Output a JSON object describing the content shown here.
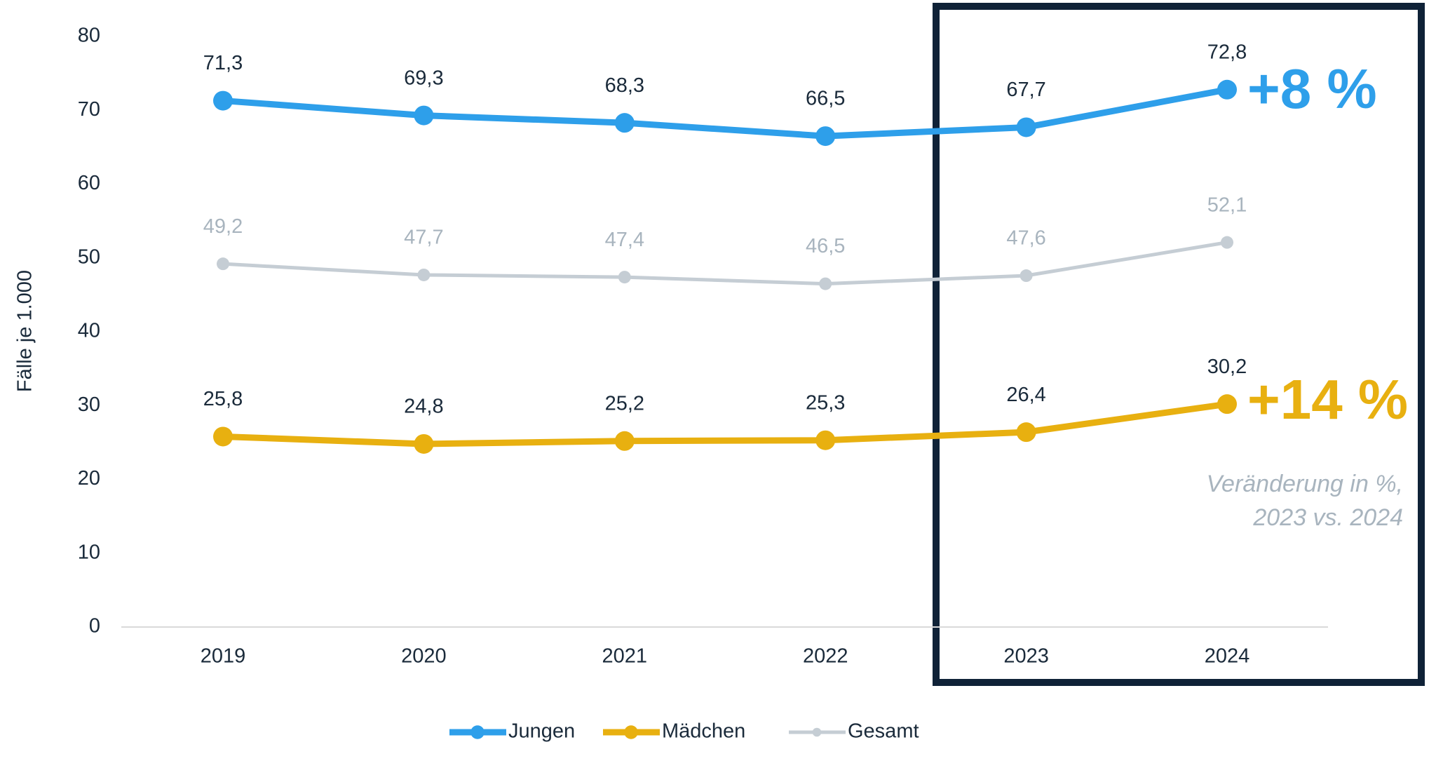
{
  "chart_data": {
    "type": "line",
    "y_label": "Fälle je 1.000",
    "categories": [
      "2019",
      "2020",
      "2021",
      "2022",
      "2023",
      "2024"
    ],
    "series": [
      {
        "name": "Jungen",
        "color": "#2E9FEA",
        "values": [
          71.3,
          69.3,
          68.3,
          66.5,
          67.7,
          72.8
        ],
        "value_labels": [
          "71,3",
          "69,3",
          "68,3",
          "66,5",
          "67,7",
          "72,8"
        ]
      },
      {
        "name": "Mädchen",
        "color": "#E8B010",
        "values": [
          25.8,
          24.8,
          25.2,
          25.3,
          26.4,
          30.2
        ],
        "value_labels": [
          "25,8",
          "24,8",
          "25,2",
          "25,3",
          "26,4",
          "30,2"
        ]
      },
      {
        "name": "Gesamt",
        "color": "#C5CDD4",
        "values": [
          49.2,
          47.7,
          47.4,
          46.5,
          47.6,
          52.1
        ],
        "value_labels": [
          "49,2",
          "47,7",
          "47,4",
          "46,5",
          "47,6",
          "52,1"
        ]
      }
    ],
    "ylim": [
      0,
      80
    ],
    "yticks": [
      0,
      10,
      20,
      30,
      40,
      50,
      60,
      70,
      80
    ],
    "annotations": [
      "+8 %",
      "+14 %",
      "Veränderung in %,",
      "2023 vs. 2024"
    ],
    "legend": "bottom"
  }
}
